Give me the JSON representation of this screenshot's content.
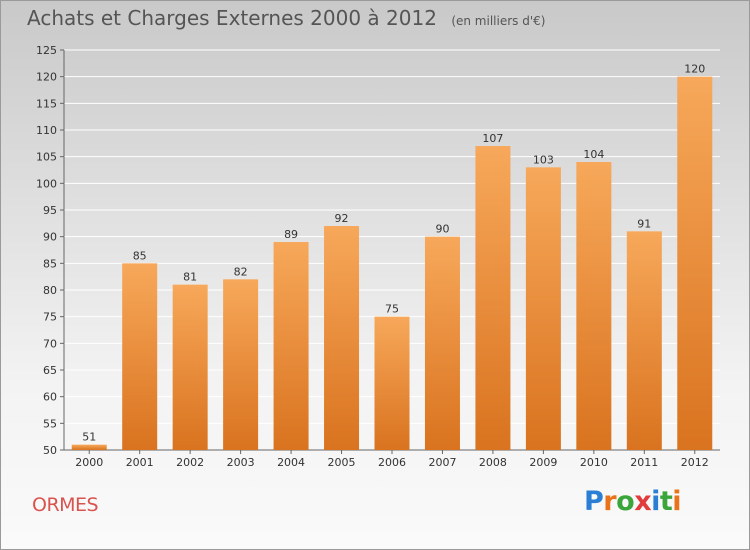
{
  "header": {
    "title": "Achats et Charges Externes 2000 à 2012",
    "unit": "(en milliers d'€)"
  },
  "footer": {
    "commune": "ORMES",
    "brand": "Proxiti",
    "brand_letter_colors": [
      "#2a7fd4",
      "#e8731a",
      "#3aa53a",
      "#e23b3b",
      "#2a7fd4",
      "#3aa53a",
      "#e8731a"
    ]
  },
  "colors": {
    "bar_top": "#f7a85a",
    "bar_bottom": "#d9731f",
    "gridline": "#ffffff",
    "commune": "#d9534f"
  },
  "chart_data": {
    "type": "bar",
    "title": "Achats et Charges Externes 2000 à 2012",
    "subtitle": "(en milliers d'€)",
    "categories": [
      "2000",
      "2001",
      "2002",
      "2003",
      "2004",
      "2005",
      "2006",
      "2007",
      "2008",
      "2009",
      "2010",
      "2011",
      "2012"
    ],
    "values": [
      51,
      85,
      81,
      82,
      89,
      92,
      75,
      90,
      107,
      103,
      104,
      91,
      120
    ],
    "ylim": [
      50,
      125
    ],
    "yticks": [
      50,
      55,
      60,
      65,
      70,
      75,
      80,
      85,
      90,
      95,
      100,
      105,
      110,
      115,
      120,
      125
    ],
    "grid": true,
    "xlabel": "",
    "ylabel": ""
  }
}
